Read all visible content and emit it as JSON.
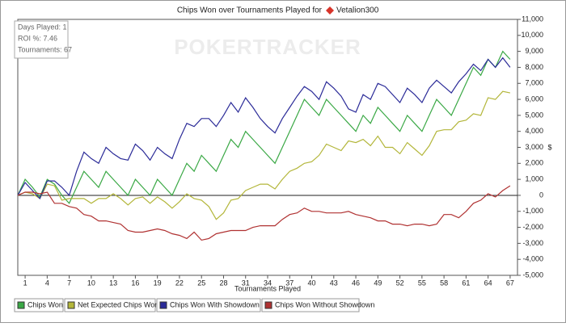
{
  "chart_data": {
    "type": "line",
    "title": "Chips Won over Tournaments Played for",
    "player": "Vetalion300",
    "watermark": "POKERTRACKER",
    "info_box": [
      "Days Played: 1",
      "ROI %: 7.46",
      "Tournaments: 67"
    ],
    "x_label": "Tournaments Played",
    "y_label": "$",
    "x": [
      0,
      1,
      2,
      3,
      4,
      5,
      6,
      7,
      8,
      9,
      10,
      11,
      12,
      13,
      14,
      15,
      16,
      17,
      18,
      19,
      20,
      21,
      22,
      23,
      24,
      25,
      26,
      27,
      28,
      29,
      30,
      31,
      32,
      33,
      34,
      35,
      36,
      37,
      38,
      39,
      40,
      41,
      42,
      43,
      44,
      45,
      46,
      47,
      48,
      49,
      50,
      51,
      52,
      53,
      54,
      55,
      56,
      57,
      58,
      59,
      60,
      61,
      62,
      63,
      64,
      65,
      66,
      67
    ],
    "xlim": [
      0,
      68
    ],
    "xticks": [
      1,
      4,
      7,
      10,
      13,
      16,
      19,
      22,
      25,
      28,
      31,
      34,
      37,
      40,
      43,
      46,
      49,
      52,
      55,
      58,
      61,
      64,
      67
    ],
    "ylim": [
      -5000,
      11000
    ],
    "yticks": [
      {
        "value": -5000,
        "label": "-5,000"
      },
      {
        "value": -4000,
        "label": "-4,000"
      },
      {
        "value": -3000,
        "label": "-3,000"
      },
      {
        "value": -2000,
        "label": "-2,000"
      },
      {
        "value": -1000,
        "label": "-1,000"
      },
      0,
      {
        "value": 1000,
        "label": "1,000"
      },
      {
        "value": 2000,
        "label": "2,000"
      },
      {
        "value": 3000,
        "label": "3,000"
      },
      {
        "value": 4000,
        "label": "4,000"
      },
      {
        "value": 5000,
        "label": "5,000"
      },
      {
        "value": 6000,
        "label": "6,000"
      },
      {
        "value": 7000,
        "label": "7,000"
      },
      {
        "value": 8000,
        "label": "8,000"
      },
      {
        "value": 9000,
        "label": "9,000"
      },
      {
        "value": 10000,
        "label": "10,000"
      },
      {
        "value": 11000,
        "label": "11,000"
      }
    ],
    "series": [
      {
        "name": "Chips Won",
        "color": "#3aa845",
        "values": [
          0,
          1000,
          500,
          -100,
          1000,
          700,
          0,
          -500,
          500,
          1500,
          1000,
          500,
          1500,
          1000,
          500,
          0,
          1000,
          500,
          0,
          1000,
          500,
          0,
          1000,
          2000,
          1500,
          2500,
          2000,
          1500,
          2500,
          3500,
          3000,
          4000,
          3500,
          3000,
          2500,
          2000,
          3000,
          4000,
          5000,
          6000,
          5500,
          5000,
          6000,
          5500,
          5000,
          4500,
          4000,
          5000,
          4500,
          5500,
          5000,
          4500,
          4000,
          5000,
          4500,
          4000,
          5000,
          6000,
          5500,
          5000,
          6000,
          7000,
          8000,
          7500,
          8500,
          8000,
          9000,
          8500
        ]
      },
      {
        "name": "Net Expected Chips Won",
        "color": "#b3b63a",
        "values": [
          0,
          200,
          100,
          -200,
          700,
          600,
          -300,
          -200,
          -200,
          -200,
          -500,
          -200,
          -200,
          100,
          -200,
          -600,
          -200,
          -100,
          -500,
          -100,
          -400,
          -800,
          -400,
          100,
          -200,
          -300,
          -700,
          -1500,
          -1100,
          -300,
          -200,
          300,
          500,
          700,
          700,
          400,
          1000,
          1500,
          1700,
          2000,
          2100,
          2500,
          3200,
          3000,
          2800,
          3400,
          3300,
          3500,
          3100,
          3700,
          3000,
          3000,
          2600,
          3300,
          2900,
          2500,
          3100,
          4000,
          4100,
          4100,
          4600,
          4700,
          5100,
          5000,
          6100,
          6000,
          6500,
          6400
        ]
      },
      {
        "name": "Chips Won With Showdown",
        "color": "#2b2b98",
        "values": [
          0,
          800,
          300,
          -200,
          900,
          900,
          500,
          0,
          1500,
          2700,
          2300,
          2000,
          3000,
          2600,
          2300,
          2200,
          3200,
          2800,
          2200,
          3000,
          2600,
          2300,
          3500,
          4500,
          4300,
          4800,
          4800,
          4300,
          5000,
          5800,
          5200,
          6100,
          5500,
          4800,
          4300,
          3900,
          4800,
          5500,
          6200,
          6800,
          6500,
          6000,
          7100,
          6700,
          6200,
          5400,
          5200,
          6300,
          6000,
          7000,
          6800,
          6300,
          5800,
          6700,
          6300,
          5800,
          6700,
          7200,
          6800,
          6400,
          7100,
          7600,
          8200,
          7800,
          8500,
          8000,
          8600,
          8000
        ]
      },
      {
        "name": "Chips Won Without Showdown",
        "color": "#b03232",
        "values": [
          0,
          200,
          200,
          100,
          200,
          -500,
          -500,
          -700,
          -800,
          -1200,
          -1300,
          -1600,
          -1600,
          -1700,
          -1800,
          -2200,
          -2300,
          -2300,
          -2200,
          -2100,
          -2200,
          -2400,
          -2500,
          -2700,
          -2300,
          -2800,
          -2700,
          -2400,
          -2300,
          -2200,
          -2200,
          -2200,
          -2000,
          -1900,
          -1900,
          -1900,
          -1500,
          -1200,
          -1100,
          -800,
          -1000,
          -1000,
          -1100,
          -1100,
          -1100,
          -1000,
          -1200,
          -1300,
          -1400,
          -1600,
          -1600,
          -1800,
          -1800,
          -1900,
          -1800,
          -1800,
          -1900,
          -1800,
          -1200,
          -1200,
          -1400,
          -1000,
          -500,
          -300,
          100,
          -100,
          300,
          600
        ]
      }
    ]
  }
}
